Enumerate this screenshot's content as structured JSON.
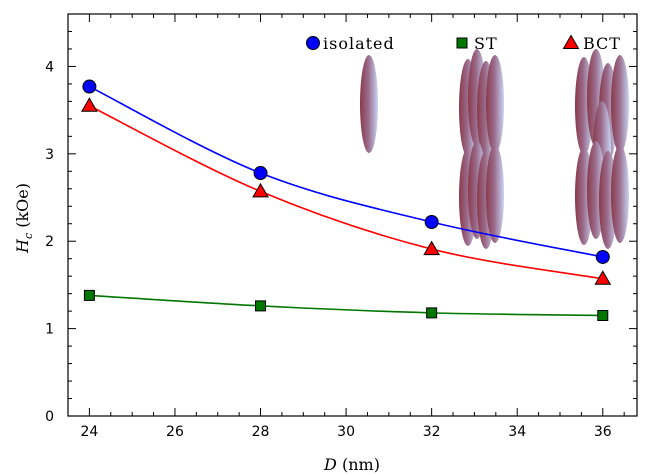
{
  "chart_data": {
    "type": "line",
    "xlabel": "D",
    "xunit": "(nm)",
    "ylabel_main": "H",
    "ylabel_sub": "c",
    "yunit": "(kOe)",
    "xlim": [
      23.5,
      36.8
    ],
    "ylim": [
      0,
      4.6
    ],
    "xticks": [
      24,
      26,
      28,
      30,
      32,
      34,
      36
    ],
    "yticks": [
      0,
      1,
      2,
      3,
      4
    ],
    "legend_position": "top-right",
    "series": [
      {
        "name": "isolated",
        "marker": "circle",
        "color": "#0000ff",
        "x": [
          24,
          28,
          32,
          36
        ],
        "y": [
          3.77,
          2.78,
          2.22,
          1.82
        ]
      },
      {
        "name": "ST",
        "marker": "square",
        "color": "#007700",
        "x": [
          24,
          28,
          32,
          36
        ],
        "y": [
          1.38,
          1.26,
          1.18,
          1.15
        ]
      },
      {
        "name": "BCT",
        "marker": "triangle",
        "color": "#ff0000",
        "x": [
          24,
          28,
          32,
          36
        ],
        "y": [
          3.55,
          2.57,
          1.91,
          1.57
        ]
      }
    ],
    "illustrations": [
      {
        "name": "isolated-particle"
      },
      {
        "name": "st-cluster"
      },
      {
        "name": "bct-cluster"
      }
    ]
  }
}
